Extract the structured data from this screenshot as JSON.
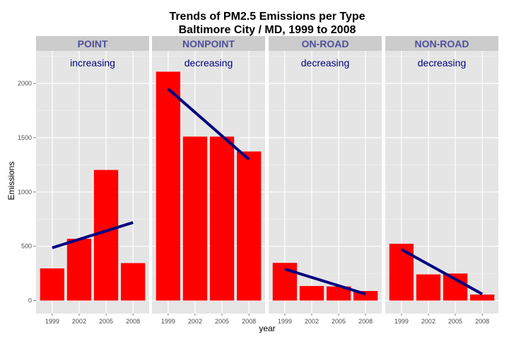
{
  "chart_data": {
    "type": "bar",
    "title_line1": "Trends of PM2.5 Emissions per Type",
    "title_line2": "Baltimore City / MD, 1999 to 2008",
    "xlabel": "year",
    "ylabel": "Emissions",
    "ylim": [
      0,
      2300
    ],
    "yticks": [
      0,
      500,
      1000,
      1500,
      2000
    ],
    "categories": [
      "1999",
      "2002",
      "2005",
      "2008"
    ],
    "grid": true,
    "colors": {
      "bar": "#ff0000",
      "trend": "#000080",
      "strip_bg": "#cccccc",
      "strip_text": "#4f4f9e",
      "panel_bg": "#e5e5e5",
      "annotation": "#000080"
    },
    "panels": [
      {
        "name": "POINT",
        "annotation": "increasing",
        "values": [
          296,
          569,
          1203,
          345
        ],
        "trend": [
          486,
          719
        ]
      },
      {
        "name": "NONPOINT",
        "annotation": "decreasing",
        "values": [
          2108,
          1510,
          1510,
          1373
        ],
        "trend": [
          1950,
          1300
        ]
      },
      {
        "name": "ON-ROAD",
        "annotation": "decreasing",
        "values": [
          347,
          134,
          130,
          88
        ],
        "trend": [
          290,
          60
        ]
      },
      {
        "name": "NON-ROAD",
        "annotation": "decreasing",
        "values": [
          523,
          241,
          249,
          55
        ],
        "trend": [
          470,
          60
        ]
      }
    ]
  }
}
